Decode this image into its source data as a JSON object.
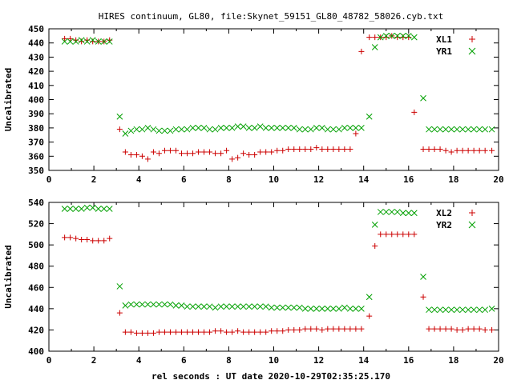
{
  "figure": {
    "title": "HIRES continuum, GL80, file:Skynet_59151_GL80_48782_58026.cyb.txt",
    "xlabel": "rel seconds : UT date 2020-10-29T02:35:25.170"
  },
  "colors": {
    "series_1": "#cc0000",
    "series_2": "#00a000"
  },
  "chart_data": [
    {
      "type": "scatter",
      "ylabel": "Uncalibrated",
      "xlim": [
        0,
        20
      ],
      "ylim": [
        350,
        450
      ],
      "x_ticks": [
        "0",
        "2",
        "4",
        "6",
        "8",
        "10",
        "12",
        "14",
        "16",
        "18",
        "20"
      ],
      "y_ticks": [
        "350",
        "360",
        "370",
        "380",
        "390",
        "400",
        "410",
        "420",
        "430",
        "440",
        "450"
      ],
      "grid": false,
      "legend_position": "top-right",
      "x": [
        0.7,
        0.95,
        1.2,
        1.45,
        1.7,
        1.95,
        2.2,
        2.45,
        2.7,
        3.15,
        3.4,
        3.65,
        3.9,
        4.15,
        4.4,
        4.65,
        4.9,
        5.15,
        5.4,
        5.65,
        5.9,
        6.15,
        6.4,
        6.65,
        6.9,
        7.15,
        7.4,
        7.65,
        7.9,
        8.15,
        8.4,
        8.65,
        8.9,
        9.15,
        9.4,
        9.65,
        9.9,
        10.15,
        10.4,
        10.65,
        10.9,
        11.15,
        11.4,
        11.65,
        11.9,
        12.15,
        12.4,
        12.65,
        12.9,
        13.15,
        13.4,
        13.65,
        13.9,
        14.25,
        14.5,
        14.75,
        15.0,
        15.25,
        15.5,
        15.75,
        16.0,
        16.25,
        16.65,
        16.9,
        17.15,
        17.4,
        17.65,
        17.9,
        18.15,
        18.4,
        18.65,
        18.9,
        19.15,
        19.4,
        19.7
      ],
      "series": [
        {
          "name": "XL1",
          "marker": "+",
          "values": [
            443,
            443,
            442,
            441,
            442,
            441,
            441,
            441,
            442,
            379,
            363,
            361,
            361,
            360,
            358,
            363,
            362,
            364,
            364,
            364,
            362,
            362,
            362,
            363,
            363,
            363,
            362,
            362,
            364,
            358,
            359,
            362,
            361,
            361,
            363,
            363,
            363,
            364,
            364,
            365,
            365,
            365,
            365,
            365,
            366,
            365,
            365,
            365,
            365,
            365,
            365,
            376,
            434,
            444,
            444,
            444,
            444,
            445,
            444,
            444,
            444,
            391,
            365,
            365,
            365,
            365,
            364,
            363,
            364,
            364,
            364,
            364,
            364,
            364,
            364
          ]
        },
        {
          "name": "YR1",
          "marker": "x",
          "values": [
            441,
            441,
            441,
            442,
            441,
            442,
            441,
            441,
            441,
            388,
            376,
            378,
            379,
            379,
            380,
            379,
            378,
            378,
            378,
            379,
            379,
            379,
            380,
            380,
            380,
            379,
            379,
            380,
            380,
            380,
            381,
            381,
            380,
            380,
            381,
            380,
            380,
            380,
            380,
            380,
            380,
            379,
            379,
            379,
            380,
            380,
            379,
            379,
            379,
            380,
            380,
            380,
            380,
            388,
            437,
            444,
            445,
            445,
            445,
            445,
            445,
            444,
            401,
            379,
            379,
            379,
            379,
            379,
            379,
            379,
            379,
            379,
            379,
            379,
            379
          ]
        }
      ]
    },
    {
      "type": "scatter",
      "ylabel": "Uncalibrated",
      "xlim": [
        0,
        20
      ],
      "ylim": [
        400,
        540
      ],
      "x_ticks": [
        "0",
        "2",
        "4",
        "6",
        "8",
        "10",
        "12",
        "14",
        "16",
        "18",
        "20"
      ],
      "y_ticks": [
        "400",
        "420",
        "440",
        "460",
        "480",
        "500",
        "520",
        "540"
      ],
      "grid": false,
      "legend_position": "top-right",
      "x": [
        0.7,
        0.95,
        1.2,
        1.45,
        1.7,
        1.95,
        2.2,
        2.45,
        2.7,
        3.15,
        3.4,
        3.65,
        3.9,
        4.15,
        4.4,
        4.65,
        4.9,
        5.15,
        5.4,
        5.65,
        5.9,
        6.15,
        6.4,
        6.65,
        6.9,
        7.15,
        7.4,
        7.65,
        7.9,
        8.15,
        8.4,
        8.65,
        8.9,
        9.15,
        9.4,
        9.65,
        9.9,
        10.15,
        10.4,
        10.65,
        10.9,
        11.15,
        11.4,
        11.65,
        11.9,
        12.15,
        12.4,
        12.65,
        12.9,
        13.15,
        13.4,
        13.65,
        13.9,
        14.25,
        14.5,
        14.75,
        15.0,
        15.25,
        15.5,
        15.75,
        16.0,
        16.25,
        16.65,
        16.9,
        17.15,
        17.4,
        17.65,
        17.9,
        18.15,
        18.4,
        18.65,
        18.9,
        19.15,
        19.4,
        19.7
      ],
      "series": [
        {
          "name": "XL2",
          "marker": "+",
          "values": [
            507,
            507,
            506,
            505,
            505,
            504,
            504,
            504,
            506,
            436,
            418,
            418,
            417,
            417,
            417,
            417,
            418,
            418,
            418,
            418,
            418,
            418,
            418,
            418,
            418,
            418,
            419,
            419,
            418,
            418,
            419,
            418,
            418,
            418,
            418,
            418,
            419,
            419,
            419,
            420,
            420,
            420,
            421,
            421,
            421,
            420,
            421,
            421,
            421,
            421,
            421,
            421,
            421,
            433,
            499,
            510,
            510,
            510,
            510,
            510,
            510,
            510,
            451,
            421,
            421,
            421,
            421,
            421,
            420,
            420,
            421,
            421,
            421,
            420,
            420
          ]
        },
        {
          "name": "YR2",
          "marker": "x",
          "values": [
            534,
            534,
            534,
            534,
            535,
            535,
            534,
            534,
            534,
            461,
            443,
            444,
            444,
            444,
            444,
            444,
            444,
            444,
            444,
            443,
            443,
            442,
            442,
            442,
            442,
            442,
            441,
            442,
            442,
            442,
            442,
            442,
            442,
            442,
            442,
            442,
            441,
            441,
            441,
            441,
            441,
            441,
            440,
            440,
            440,
            440,
            440,
            440,
            440,
            441,
            440,
            440,
            440,
            451,
            519,
            531,
            531,
            531,
            531,
            530,
            530,
            530,
            470,
            439,
            439,
            439,
            439,
            439,
            439,
            439,
            439,
            439,
            439,
            439,
            440
          ]
        }
      ]
    }
  ]
}
